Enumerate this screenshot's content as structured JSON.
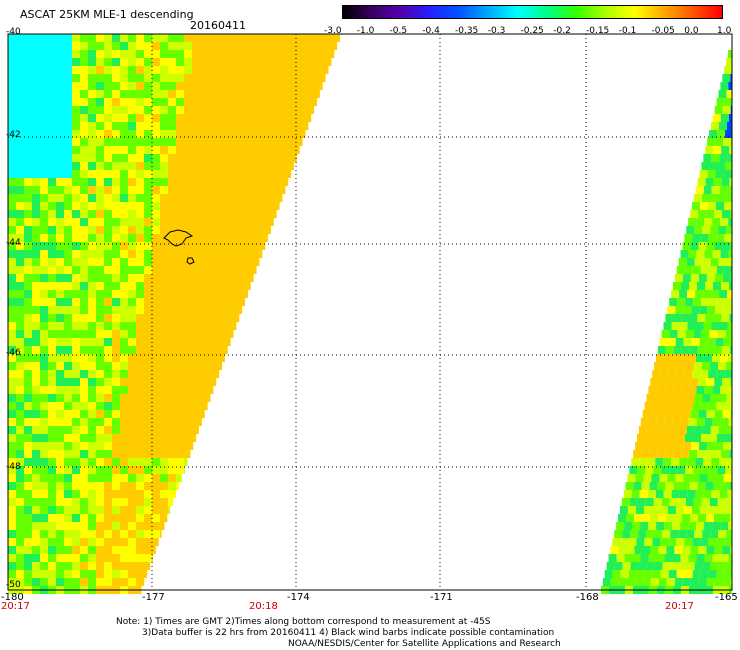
{
  "header": {
    "title": "ASCAT 25KM MLE-1 descending",
    "date": "20160411"
  },
  "colorbar": {
    "labels": [
      "-3.0",
      "-1.0",
      "-0.5",
      "-0.4",
      "-0.35",
      "-0.3",
      "-0.25",
      "-0.2",
      "-0.15",
      "-0.1",
      "-0.05",
      "0.0",
      "1.0"
    ],
    "colors": [
      "#000000",
      "#3a0066",
      "#5500b0",
      "#2222ff",
      "#0055ff",
      "#00aaff",
      "#00ffff",
      "#00ff88",
      "#33ff00",
      "#aaff00",
      "#ffff00",
      "#ffaa00",
      "#ff5500",
      "#ff0000"
    ]
  },
  "axes": {
    "lat_labels": [
      "-40",
      "-42",
      "-44",
      "-46",
      "-48",
      "-50"
    ],
    "lon_labels": [
      "-180",
      "-177",
      "-174",
      "-171",
      "-168",
      "-165"
    ],
    "time_labels": [
      "20:17",
      "20:18",
      "20:17"
    ]
  },
  "notes": {
    "line1": "Note: 1) Times are GMT 2)Times along bottom correspond to measurement at -45S",
    "line2": "3)Data buffer is 22 hrs from 20160411 4) Black wind barbs indicate possible contamination",
    "line3": "NOAA/NESDIS/Center for Satellite Applications and Research"
  }
}
